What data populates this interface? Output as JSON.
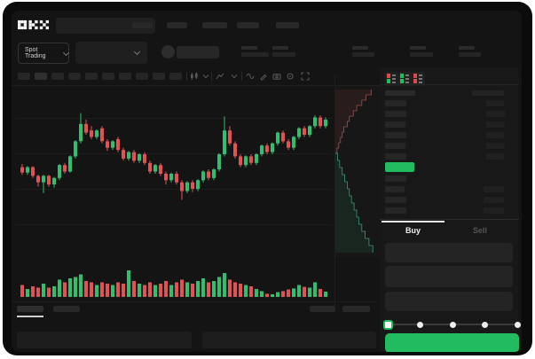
{
  "app": {
    "logo_text": "OKX"
  },
  "colors": {
    "accent_green": "#22bb60",
    "candle_up": "#2fbf71",
    "candle_down": "#e05257",
    "depth_ask_line": "#9b5252",
    "depth_bid_line": "#3f9579",
    "window_bg": "#141414",
    "bezel": "#0b0b0b"
  },
  "header": {
    "nav_item_count": 5
  },
  "market_bar": {
    "market_selector": {
      "label": "Spot Trading"
    },
    "stat_group_count": 5
  },
  "chart_toolbar": {
    "interval_button_count": 10,
    "icons": [
      "candles-icon",
      "chevron-down-icon",
      "indicators-icon",
      "chevron-down-icon",
      "wave-icon",
      "pencil-icon",
      "camera-icon",
      "gear-icon",
      "fullscreen-icon"
    ]
  },
  "order_book": {
    "view_toggles": [
      "book-both-view",
      "book-bids-view",
      "book-asks-view"
    ],
    "header": {
      "left_w": 34,
      "right_w": 36
    },
    "asks": [
      {
        "l": 24,
        "r": 20
      },
      {
        "l": 24,
        "r": 21
      },
      {
        "l": 23,
        "r": 21
      },
      {
        "l": 24,
        "r": 20
      },
      {
        "l": 23,
        "r": 21
      },
      {
        "l": 24,
        "r": 20
      }
    ],
    "last_price_highlight": "green",
    "bids": [
      {
        "l": 24,
        "r": 0
      },
      {
        "l": 22,
        "r": 23
      },
      {
        "l": 24,
        "r": 23
      },
      {
        "l": 24,
        "r": 23
      }
    ]
  },
  "trade_panel": {
    "tabs": [
      {
        "label": "Buy",
        "active": true
      },
      {
        "label": "Sell",
        "active": false
      }
    ],
    "input_count": 3,
    "slider": {
      "stops": 5,
      "value_index": 0
    }
  },
  "bottom_bar": {
    "left_tab_count": 2,
    "active_tab_index": 0,
    "right_item_count": 2,
    "panel_count": 2
  },
  "chart_data": {
    "type": "candlestick",
    "value_range": [
      0,
      100
    ],
    "grid_lines": 4,
    "candles": [
      [
        38,
        41,
        31,
        33
      ],
      [
        33,
        39,
        31,
        38
      ],
      [
        38,
        39,
        28,
        30
      ],
      [
        30,
        31,
        20,
        24
      ],
      [
        24,
        31,
        14,
        30
      ],
      [
        30,
        31,
        20,
        22
      ],
      [
        22,
        29,
        19,
        28
      ],
      [
        28,
        41,
        26,
        40
      ],
      [
        40,
        42,
        32,
        34
      ],
      [
        34,
        49,
        33,
        48
      ],
      [
        48,
        63,
        46,
        62
      ],
      [
        62,
        88,
        60,
        78
      ],
      [
        78,
        82,
        68,
        70
      ],
      [
        72,
        76,
        64,
        66
      ],
      [
        66,
        73,
        64,
        72
      ],
      [
        74,
        76,
        60,
        62
      ],
      [
        62,
        64,
        53,
        56
      ],
      [
        56,
        63,
        54,
        62
      ],
      [
        64,
        66,
        52,
        54
      ],
      [
        54,
        56,
        44,
        46
      ],
      [
        46,
        53,
        44,
        52
      ],
      [
        52,
        54,
        42,
        44
      ],
      [
        44,
        51,
        42,
        50
      ],
      [
        50,
        52,
        40,
        42
      ],
      [
        42,
        44,
        32,
        34
      ],
      [
        34,
        41,
        32,
        40
      ],
      [
        40,
        42,
        30,
        32
      ],
      [
        32,
        34,
        22,
        26
      ],
      [
        26,
        33,
        24,
        32
      ],
      [
        32,
        34,
        22,
        24
      ],
      [
        24,
        26,
        8,
        16
      ],
      [
        16,
        25,
        14,
        24
      ],
      [
        24,
        26,
        15,
        18
      ],
      [
        18,
        27,
        16,
        26
      ],
      [
        26,
        35,
        24,
        34
      ],
      [
        34,
        36,
        26,
        28
      ],
      [
        28,
        37,
        26,
        36
      ],
      [
        36,
        51,
        34,
        50
      ],
      [
        50,
        85,
        48,
        72
      ],
      [
        72,
        76,
        58,
        60
      ],
      [
        60,
        62,
        46,
        48
      ],
      [
        48,
        50,
        38,
        40
      ],
      [
        40,
        49,
        38,
        48
      ],
      [
        48,
        50,
        40,
        42
      ],
      [
        42,
        51,
        40,
        50
      ],
      [
        50,
        59,
        48,
        58
      ],
      [
        58,
        60,
        50,
        52
      ],
      [
        52,
        61,
        50,
        60
      ],
      [
        60,
        71,
        58,
        70
      ],
      [
        70,
        72,
        60,
        62
      ],
      [
        62,
        64,
        54,
        56
      ],
      [
        56,
        67,
        54,
        66
      ],
      [
        66,
        75,
        64,
        74
      ],
      [
        74,
        76,
        66,
        68
      ],
      [
        68,
        77,
        66,
        76
      ],
      [
        76,
        86,
        74,
        84
      ],
      [
        84,
        86,
        74,
        76
      ],
      [
        76,
        84,
        74,
        82
      ]
    ],
    "volume": [
      45,
      30,
      40,
      35,
      50,
      35,
      40,
      65,
      55,
      70,
      75,
      85,
      60,
      55,
      45,
      55,
      50,
      45,
      55,
      50,
      100,
      60,
      50,
      45,
      55,
      45,
      50,
      60,
      45,
      55,
      65,
      55,
      50,
      60,
      70,
      55,
      60,
      75,
      90,
      65,
      55,
      50,
      45,
      40,
      30,
      22,
      12,
      10,
      18,
      22,
      28,
      32,
      45,
      38,
      35,
      55,
      30,
      20
    ],
    "depth": {
      "asks": [
        0.04,
        0.08,
        0.12,
        0.16,
        0.2,
        0.28,
        0.33,
        0.42,
        0.5,
        0.62,
        0.72,
        0.84
      ],
      "bids": [
        0.05,
        0.1,
        0.16,
        0.22,
        0.28,
        0.33,
        0.38,
        0.44,
        0.5,
        0.55,
        0.62,
        0.7,
        0.79,
        0.88
      ]
    }
  }
}
